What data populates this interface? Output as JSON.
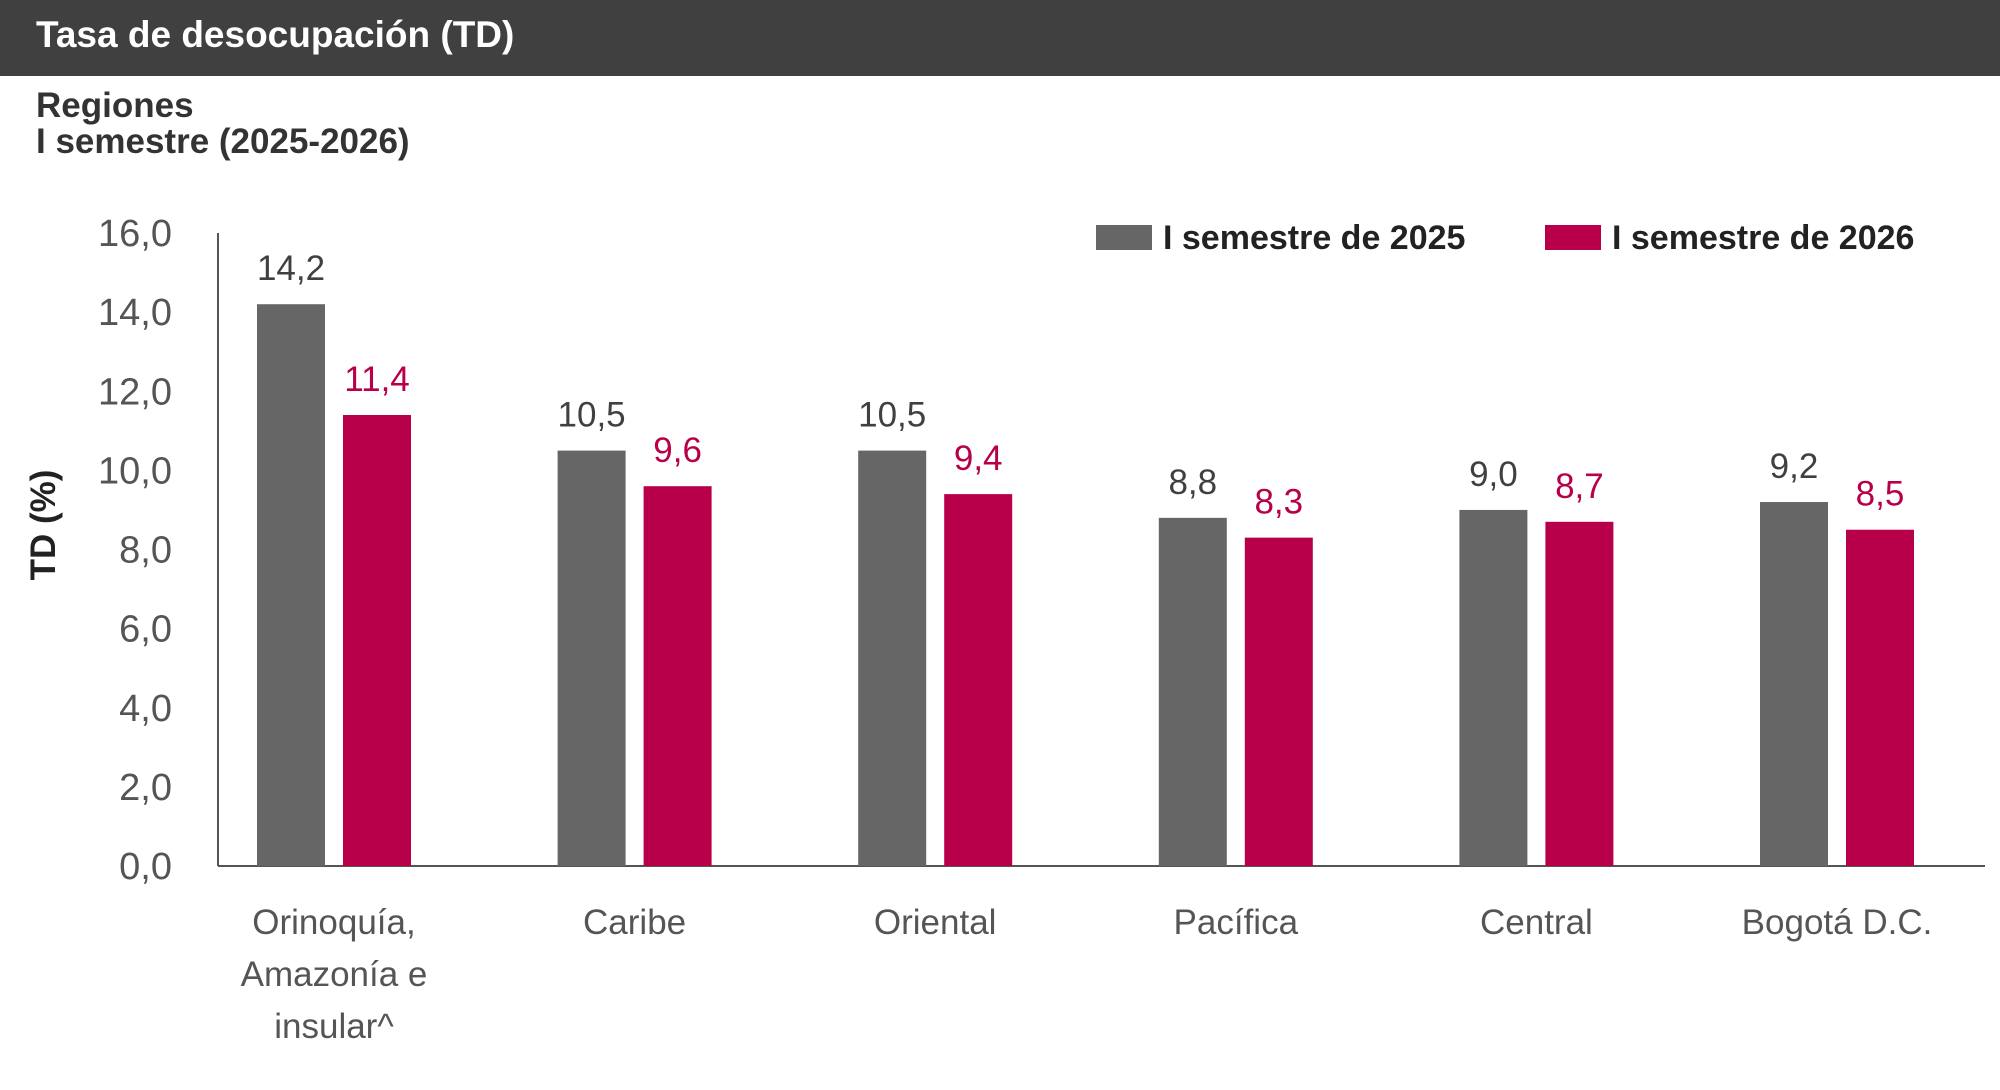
{
  "header": {
    "title": "Tasa de desocupación (TD)",
    "subtitle_line1": "Regiones",
    "subtitle_line2": "I semestre (2025-2026)"
  },
  "chart_data": {
    "type": "bar",
    "ylabel": "TD (%)",
    "ylim": [
      0,
      16
    ],
    "yticks": [
      "0,0",
      "2,0",
      "4,0",
      "6,0",
      "8,0",
      "10,0",
      "12,0",
      "14,0",
      "16,0"
    ],
    "categories": [
      [
        "Orinoquía,",
        "Amazonía e",
        "insular^"
      ],
      [
        "Caribe"
      ],
      [
        "Oriental"
      ],
      [
        "Pacífica"
      ],
      [
        "Central"
      ],
      [
        "Bogotá D.C."
      ]
    ],
    "series": [
      {
        "name": "I semestre de 2025",
        "color": "#666666",
        "label_color": "#404040",
        "values": [
          14.2,
          10.5,
          10.5,
          8.8,
          9.0,
          9.2
        ],
        "labels": [
          "14,2",
          "10,5",
          "10,5",
          "8,8",
          "9,0",
          "9,2"
        ]
      },
      {
        "name": "I semestre de 2026",
        "color": "#b8004a",
        "label_color": "#b8004a",
        "values": [
          11.4,
          9.6,
          9.4,
          8.3,
          8.7,
          8.5
        ],
        "labels": [
          "11,4",
          "9,6",
          "9,4",
          "8,3",
          "8,7",
          "8,5"
        ]
      }
    ],
    "legend_position": "top-right",
    "grid": false
  }
}
